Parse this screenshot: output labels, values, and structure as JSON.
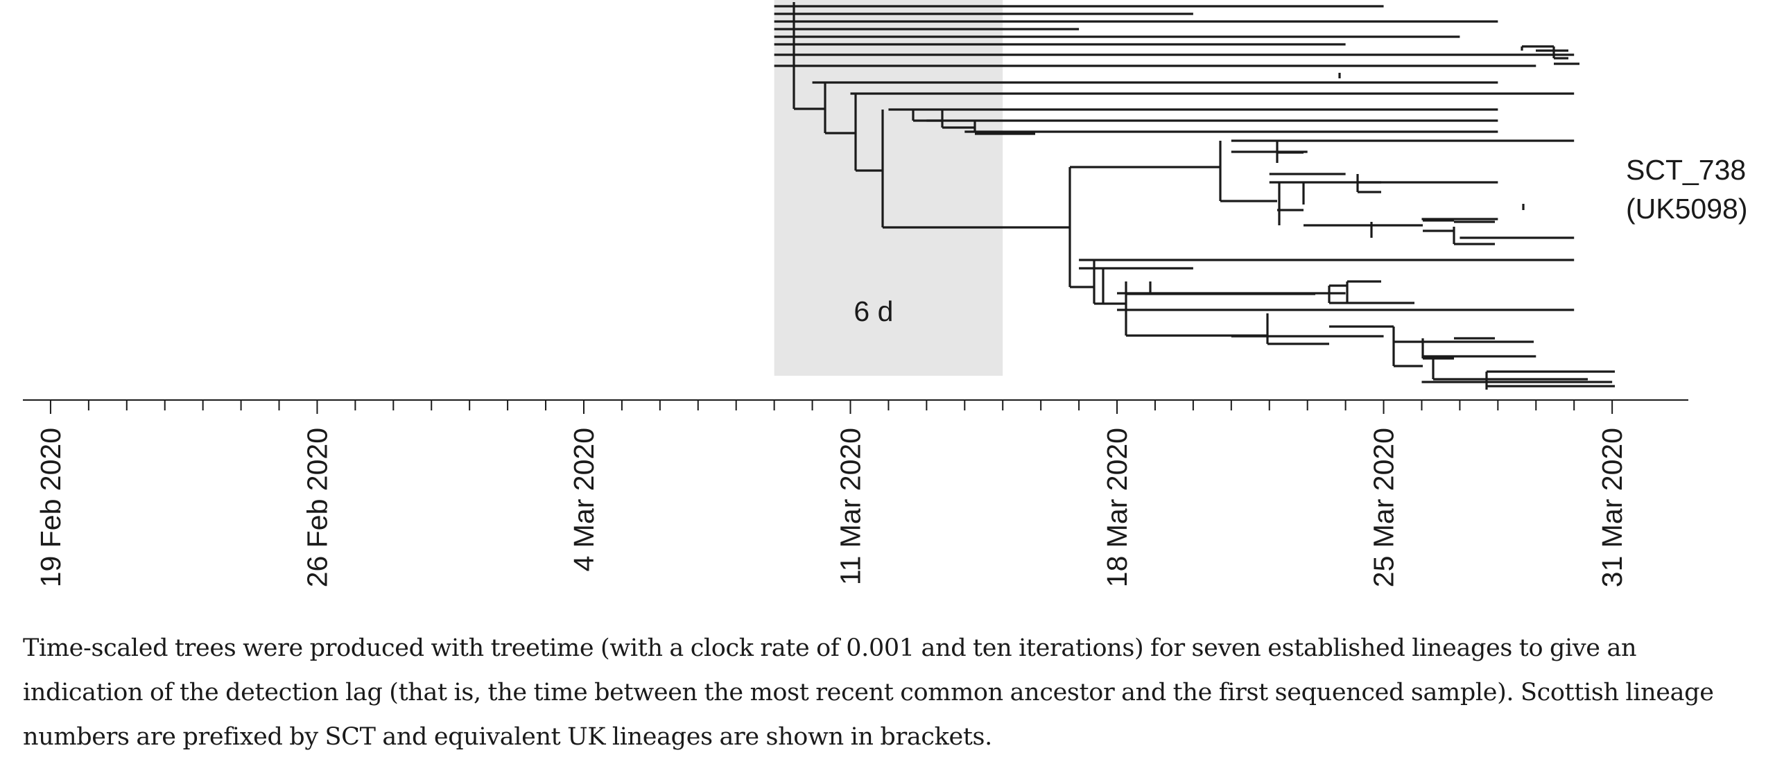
{
  "chart_data": {
    "type": "tree",
    "x_axis": {
      "type": "date",
      "range": [
        "2020-02-18",
        "2020-04-02"
      ],
      "labelled_ticks": [
        {
          "date": "2020-02-19",
          "label": "19 Feb 2020"
        },
        {
          "date": "2020-02-26",
          "label": "26 Feb 2020"
        },
        {
          "date": "2020-03-04",
          "label": "4 Mar 2020"
        },
        {
          "date": "2020-03-11",
          "label": "11 Mar 2020"
        },
        {
          "date": "2020-03-18",
          "label": "18 Mar 2020"
        },
        {
          "date": "2020-03-25",
          "label": "25 Mar 2020"
        },
        {
          "date": "2020-03-31",
          "label": "31 Mar 2020"
        }
      ],
      "minor_tick_interval_days": 1,
      "minor_ticks_from": "2020-02-19",
      "minor_ticks_to": "2020-03-31"
    },
    "lineage_label": {
      "lineage": "SCT_738",
      "uk_lineage": "(UK5098)"
    },
    "detection_lag": {
      "label": "6 d",
      "start": "2020-03-09",
      "end": "2020-03-15"
    },
    "branches": [
      {
        "date_from": "2020-03-09",
        "date_to": "2020-03-25"
      },
      {
        "date_from": "2020-03-09",
        "date_to": "2020-03-20"
      },
      {
        "date_from": "2020-03-09",
        "date_to": "2020-03-28"
      },
      {
        "date_from": "2020-03-09",
        "date_to": "2020-03-17"
      },
      {
        "date_from": "2020-03-09",
        "date_to": "2020-03-27"
      },
      {
        "date_from": "2020-03-09",
        "date_to": "2020-03-24"
      },
      {
        "date_from": "2020-03-09",
        "date_to": "2020-03-30"
      },
      {
        "date_from": "2020-03-09",
        "date_to": "2020-03-29"
      },
      {
        "date_from": "2020-03-10",
        "date_to": "2020-03-28"
      },
      {
        "date_from": "2020-03-11",
        "date_to": "2020-03-30"
      },
      {
        "date_from": "2020-03-12",
        "date_to": "2020-03-28"
      },
      {
        "date_from": "2020-03-13",
        "date_to": "2020-03-28"
      },
      {
        "date_from": "2020-03-14",
        "date_to": "2020-03-28"
      },
      {
        "date_from": "2020-03-15",
        "date_to": "2020-03-15"
      },
      {
        "date_from": "2020-03-21",
        "date_to": "2020-03-30"
      },
      {
        "date_from": "2020-03-21",
        "date_to": "2020-03-23"
      },
      {
        "date_from": "2020-03-22",
        "date_to": "2020-03-24"
      },
      {
        "date_from": "2020-03-22",
        "date_to": "2020-03-28"
      },
      {
        "date_from": "2020-03-26",
        "date_to": "2020-03-28"
      },
      {
        "date_from": "2020-03-27",
        "date_to": "2020-03-30"
      },
      {
        "date_from": "2020-03-17",
        "date_to": "2020-03-30"
      },
      {
        "date_from": "2020-03-17",
        "date_to": "2020-03-20"
      },
      {
        "date_from": "2020-03-18",
        "date_to": "2020-03-24"
      },
      {
        "date_from": "2020-03-18",
        "date_to": "2020-03-30"
      },
      {
        "date_from": "2020-03-21",
        "date_to": "2020-03-25"
      },
      {
        "date_from": "2020-03-26",
        "date_to": "2020-03-29"
      },
      {
        "date_from": "2020-03-26",
        "date_to": "2020-03-31"
      }
    ]
  },
  "caption": "Time-scaled trees were produced with treetime (with a clock rate of 0.001 and ten iterations) for seven established lineages to give an indication of the detection lag (that is, the time between the most recent common ancestor and the first sequenced sample). Scottish lineage numbers are prefixed by SCT and equivalent UK lineages are shown in brackets."
}
